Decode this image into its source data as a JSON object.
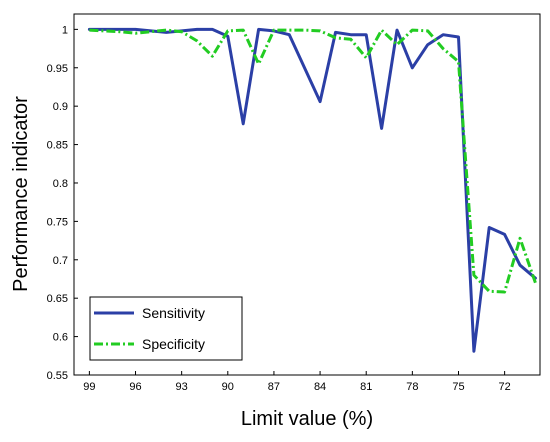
{
  "chart_data": {
    "type": "line",
    "xlabel": "Limit value (%)",
    "ylabel": "Performance indicator",
    "x_reversed": true,
    "xlim": [
      100,
      69.7
    ],
    "ylim": [
      0.55,
      1.02
    ],
    "x_ticks": [
      99,
      96,
      93,
      90,
      87,
      84,
      81,
      78,
      75,
      72
    ],
    "x_tick_labels": [
      "99",
      "96",
      "93",
      "90",
      "87",
      "84",
      "81",
      "78",
      "75",
      "72"
    ],
    "y_ticks": [
      0.55,
      0.6,
      0.65,
      0.7,
      0.75,
      0.8,
      0.85,
      0.9,
      0.95,
      1
    ],
    "y_tick_labels": [
      "0.55",
      "0.6",
      "0.65",
      "0.7",
      "0.75",
      "0.8",
      "0.85",
      "0.9",
      "0.95",
      "1"
    ],
    "grid": false,
    "legend_position": "bottom-left",
    "series": [
      {
        "name": "Sensitivity",
        "color": "#2b3fa6",
        "style": "solid",
        "points": [
          [
            99,
            1.0
          ],
          [
            98,
            1.0
          ],
          [
            97,
            1.0
          ],
          [
            96,
            1.0
          ],
          [
            95,
            0.998
          ],
          [
            94,
            0.996
          ],
          [
            93,
            0.998
          ],
          [
            92,
            1.0
          ],
          [
            91,
            1.0
          ],
          [
            90,
            0.991
          ],
          [
            89,
            0.877
          ],
          [
            88,
            1.0
          ],
          [
            87,
            0.998
          ],
          [
            86,
            0.993
          ],
          [
            84,
            0.906
          ],
          [
            83,
            0.996
          ],
          [
            82,
            0.993
          ],
          [
            81,
            0.993
          ],
          [
            80,
            0.871
          ],
          [
            79,
            0.999
          ],
          [
            78,
            0.95
          ],
          [
            77,
            0.98
          ],
          [
            76,
            0.993
          ],
          [
            75,
            0.99
          ],
          [
            74,
            0.581
          ],
          [
            73,
            0.742
          ],
          [
            72,
            0.733
          ],
          [
            71,
            0.693
          ],
          [
            70,
            0.676
          ]
        ]
      },
      {
        "name": "Specificity",
        "color": "#22cc22",
        "style": "dash-dot",
        "points": [
          [
            99,
            0.999
          ],
          [
            98,
            0.998
          ],
          [
            97,
            0.997
          ],
          [
            96,
            0.995
          ],
          [
            95,
            0.997
          ],
          [
            94,
            0.999
          ],
          [
            93,
            0.997
          ],
          [
            92,
            0.985
          ],
          [
            91,
            0.965
          ],
          [
            90,
            0.998
          ],
          [
            89,
            0.999
          ],
          [
            88,
            0.955
          ],
          [
            87,
            0.999
          ],
          [
            86,
            0.999
          ],
          [
            85,
            0.999
          ],
          [
            84,
            0.998
          ],
          [
            83,
            0.989
          ],
          [
            82,
            0.987
          ],
          [
            81,
            0.963
          ],
          [
            80,
            0.999
          ],
          [
            79,
            0.98
          ],
          [
            78,
            0.999
          ],
          [
            77,
            0.998
          ],
          [
            76,
            0.975
          ],
          [
            75,
            0.958
          ],
          [
            74,
            0.68
          ],
          [
            73,
            0.659
          ],
          [
            72,
            0.658
          ],
          [
            71,
            0.728
          ],
          [
            70,
            0.67
          ]
        ]
      }
    ]
  }
}
